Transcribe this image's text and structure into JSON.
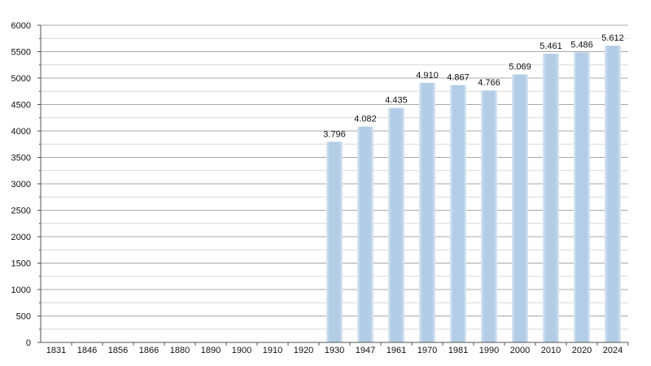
{
  "chart_data": {
    "type": "bar",
    "title": "",
    "xlabel": "",
    "ylabel": "",
    "categories": [
      "1831",
      "1846",
      "1856",
      "1866",
      "1880",
      "1890",
      "1900",
      "1910",
      "1920",
      "1930",
      "1947",
      "1961",
      "1970",
      "1981",
      "1990",
      "2000",
      "2010",
      "2020",
      "2024"
    ],
    "values": [
      null,
      null,
      null,
      null,
      null,
      null,
      null,
      null,
      null,
      3796,
      4082,
      4435,
      4910,
      4867,
      4766,
      5069,
      5461,
      5486,
      5612
    ],
    "data_labels": [
      "",
      "",
      "",
      "",
      "",
      "",
      "",
      "",
      "",
      "3.796",
      "4.082",
      "4.435",
      "4.910",
      "4.867",
      "4.766",
      "5.069",
      "5.461",
      "5.486",
      "5.612"
    ],
    "ylim": [
      0,
      6000
    ],
    "y_ticks": [
      0,
      500,
      1000,
      1500,
      2000,
      2500,
      3000,
      3500,
      4000,
      4500,
      5000,
      5500,
      6000
    ],
    "grid": true,
    "legend": "none",
    "colors": {
      "bar": "#b3cde6",
      "bar_edge": "#d6e4f2",
      "grid_major": "#a8a8a8",
      "grid_minor": "#d9d9d9",
      "axis": "#555555",
      "text": "#111111"
    }
  }
}
